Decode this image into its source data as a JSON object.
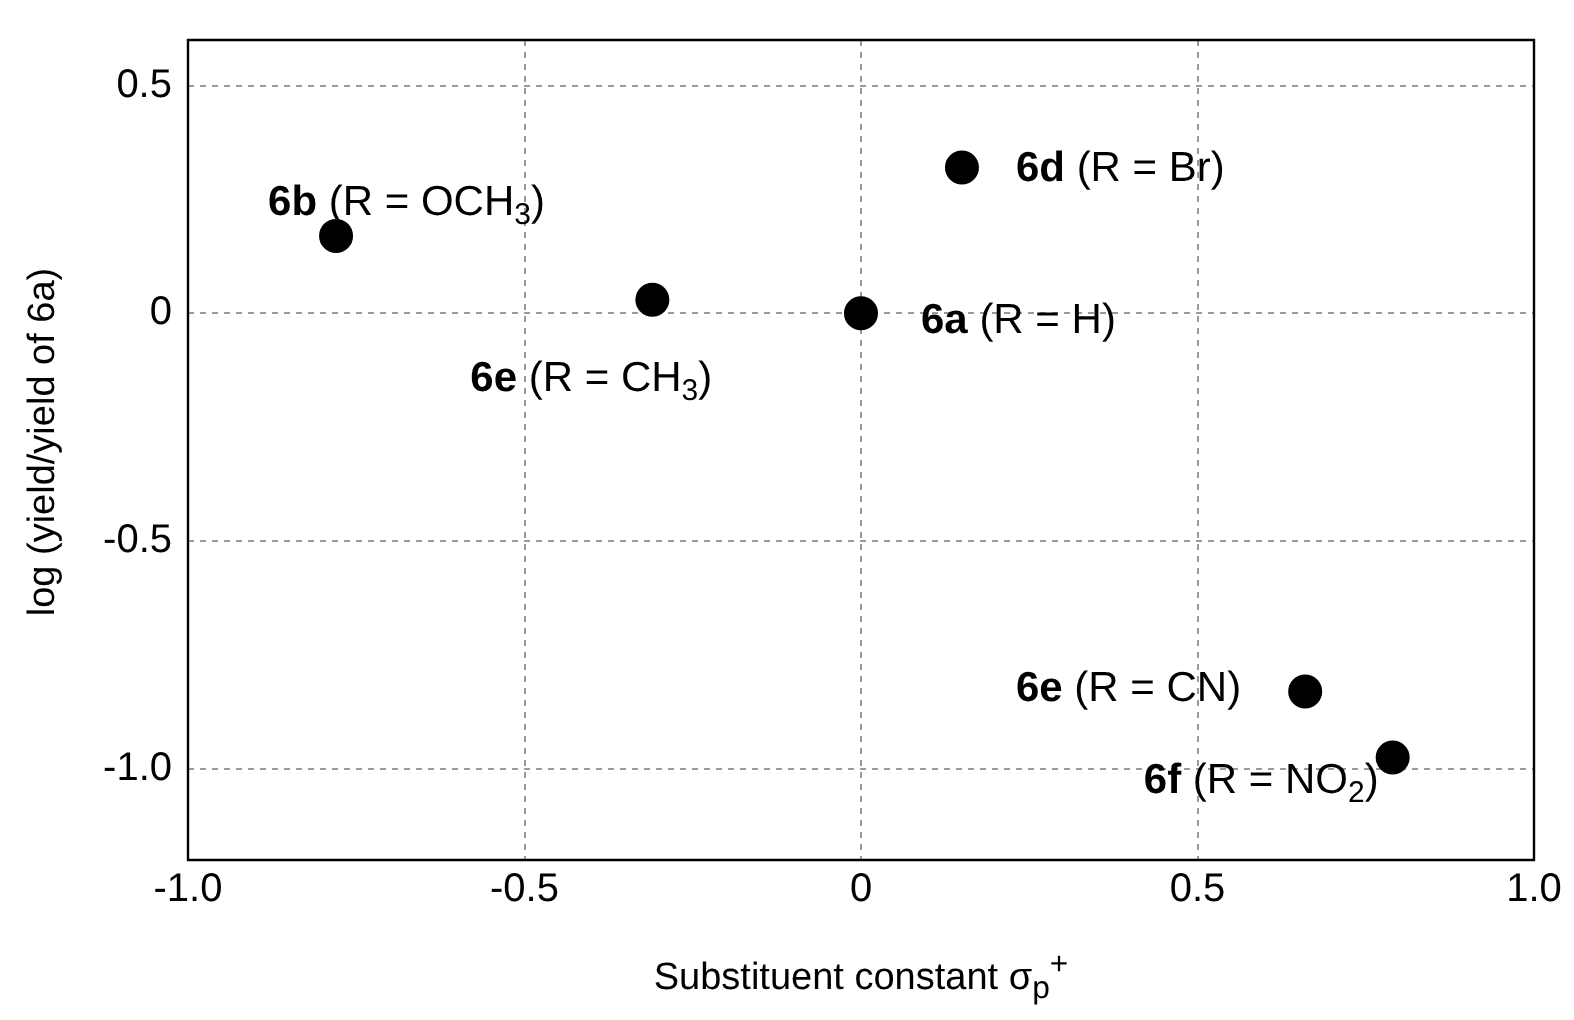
{
  "chart_data": {
    "type": "scatter",
    "xlabel": "Substituent constant  σ$_{p}$$^{+}$",
    "ylabel": "log (yield/yield of 6a)",
    "x": [
      -0.78,
      -0.31,
      0,
      0.15,
      0.66,
      0.79
    ],
    "values": [
      0.17,
      0.03,
      0,
      0.32,
      -0.83,
      -0.975
    ],
    "color": "#000000",
    "marker": "circle",
    "xlim": [
      -1,
      1
    ],
    "ylim": [
      -1.2,
      0.6
    ],
    "xticks": [
      {
        "value": -1,
        "label": "-1.0"
      },
      {
        "value": -0.5,
        "label": "-0.5"
      },
      0,
      {
        "value": 0.5,
        "label": "0.5"
      },
      {
        "value": 1,
        "label": "1.0"
      }
    ],
    "yticks": [
      {
        "value": -1,
        "label": "-1.0"
      },
      {
        "value": -0.5,
        "label": "-0.5"
      },
      0,
      {
        "value": 0.5,
        "label": "0.5"
      }
    ],
    "grid": true,
    "annotations": [
      {
        "text": "6b (R = OCH$_{3}$)",
        "x": -0.78,
        "y": 0.17
      },
      {
        "text": "6e (R = CH$_{3}$)",
        "x": -0.31,
        "y": 0.03
      },
      {
        "text": "6a (R = H)",
        "x": 0,
        "y": 0
      },
      {
        "text": "6d (R = Br)",
        "x": 0.15,
        "y": 0.32
      },
      {
        "text": "6e (R = CN)",
        "x": 0.66,
        "y": -0.83
      },
      {
        "text": "6f (R = NO$_{2}$)",
        "x": 0.79,
        "y": -0.975
      }
    ]
  }
}
